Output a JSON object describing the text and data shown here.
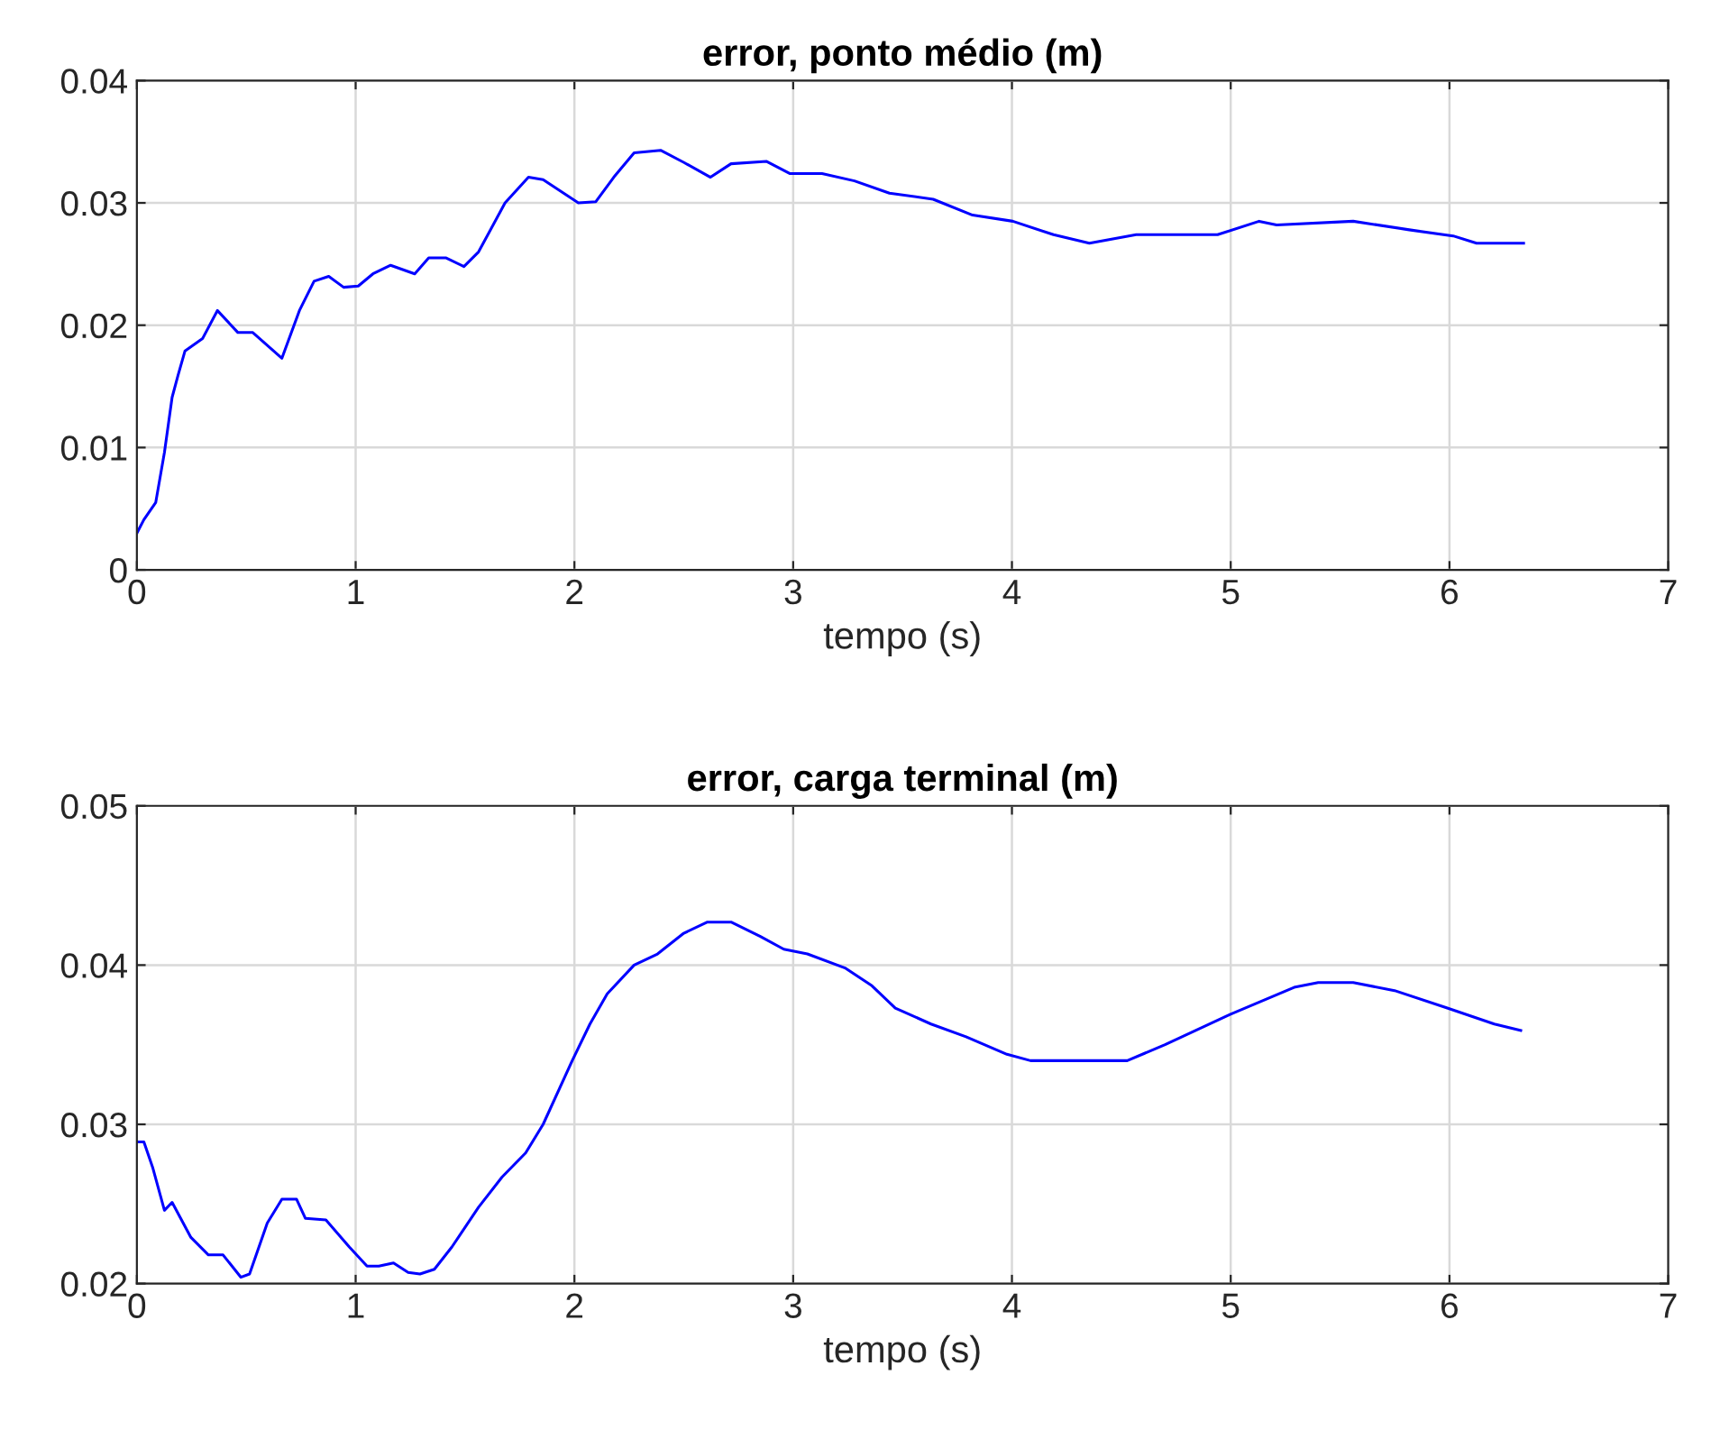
{
  "chart_data": [
    {
      "type": "line",
      "title": "error, ponto médio (m)",
      "xlabel": "tempo (s)",
      "xlim": [
        0,
        7
      ],
      "xticks": [
        0,
        1,
        2,
        3,
        4,
        5,
        6,
        7
      ],
      "ylim": [
        0,
        0.04
      ],
      "yticks": [
        0,
        0.01,
        0.02,
        0.03,
        0.04
      ],
      "grid": true,
      "legend": false,
      "series": [
        {
          "color": "#0000ff",
          "x": [
            0,
            0.032,
            0.086,
            0.126,
            0.161,
            0.188,
            0.22,
            0.3,
            0.368,
            0.462,
            0.53,
            0.663,
            0.743,
            0.81,
            0.877,
            0.945,
            1.012,
            1.079,
            1.16,
            1.27,
            1.334,
            1.414,
            1.495,
            1.562,
            1.683,
            1.79,
            1.857,
            2.018,
            2.098,
            2.18,
            2.273,
            2.394,
            2.501,
            2.622,
            2.716,
            2.877,
            2.984,
            3.132,
            3.28,
            3.44,
            3.64,
            3.82,
            4.004,
            4.19,
            4.354,
            4.568,
            4.94,
            5.13,
            5.21,
            5.56,
            5.816,
            6.017,
            6.124,
            6.339
          ],
          "values": [
            0.003,
            0.0041,
            0.0055,
            0.0096,
            0.0141,
            0.0159,
            0.0179,
            0.0189,
            0.0212,
            0.0194,
            0.0194,
            0.0173,
            0.0212,
            0.0236,
            0.024,
            0.0231,
            0.0232,
            0.0242,
            0.0249,
            0.0242,
            0.0255,
            0.0255,
            0.0248,
            0.026,
            0.03,
            0.0321,
            0.0319,
            0.03,
            0.0301,
            0.0321,
            0.0341,
            0.0343,
            0.0333,
            0.0321,
            0.0332,
            0.0334,
            0.0324,
            0.0324,
            0.0318,
            0.0308,
            0.0303,
            0.029,
            0.0285,
            0.0274,
            0.0267,
            0.0274,
            0.0274,
            0.0285,
            0.0282,
            0.0285,
            0.0278,
            0.0273,
            0.0267,
            0.0267
          ]
        }
      ]
    },
    {
      "type": "line",
      "title": "error, carga terminal (m)",
      "xlabel": "tempo (s)",
      "xlim": [
        0,
        7
      ],
      "xticks": [
        0,
        1,
        2,
        3,
        4,
        5,
        6,
        7
      ],
      "ylim": [
        0.02,
        0.05
      ],
      "yticks": [
        0.02,
        0.03,
        0.04,
        0.05
      ],
      "grid": true,
      "legend": false,
      "series": [
        {
          "color": "#0000ff",
          "x": [
            0,
            0.032,
            0.072,
            0.126,
            0.161,
            0.247,
            0.327,
            0.394,
            0.475,
            0.515,
            0.596,
            0.663,
            0.73,
            0.77,
            0.864,
            0.971,
            1.052,
            1.106,
            1.173,
            1.24,
            1.294,
            1.36,
            1.44,
            1.562,
            1.67,
            1.777,
            1.857,
            1.99,
            2.071,
            2.15,
            2.273,
            2.38,
            2.5,
            2.608,
            2.716,
            2.85,
            2.957,
            3.065,
            3.24,
            3.36,
            3.467,
            3.63,
            3.79,
            3.977,
            4.085,
            4.527,
            4.7,
            4.997,
            5.29,
            5.4,
            5.56,
            5.749,
            5.99,
            6.205,
            6.326
          ],
          "values": [
            0.0289,
            0.0289,
            0.0273,
            0.0246,
            0.0251,
            0.0229,
            0.0218,
            0.0218,
            0.0204,
            0.0206,
            0.0238,
            0.0253,
            0.0253,
            0.0241,
            0.024,
            0.0223,
            0.0211,
            0.0211,
            0.0213,
            0.0207,
            0.0206,
            0.0209,
            0.0223,
            0.0248,
            0.0267,
            0.0282,
            0.03,
            0.034,
            0.0363,
            0.0382,
            0.04,
            0.0407,
            0.042,
            0.0427,
            0.0427,
            0.0418,
            0.041,
            0.0407,
            0.0398,
            0.0387,
            0.0373,
            0.0363,
            0.0355,
            0.0344,
            0.034,
            0.034,
            0.035,
            0.0369,
            0.0386,
            0.0389,
            0.0389,
            0.0384,
            0.0373,
            0.0363,
            0.0359
          ]
        }
      ]
    }
  ]
}
